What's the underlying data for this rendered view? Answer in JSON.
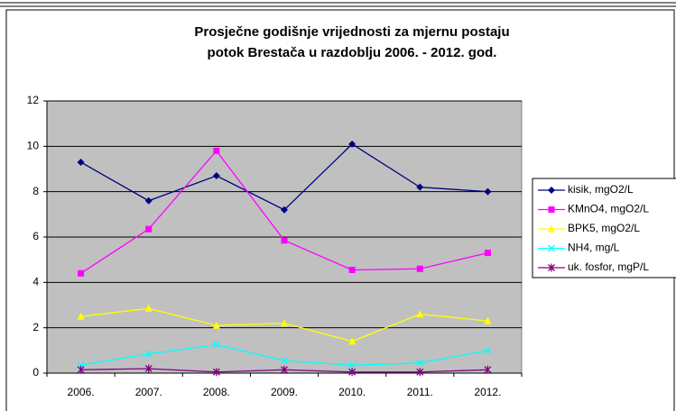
{
  "chart_data": {
    "type": "line",
    "title": [
      "Prosječne godišnje vrijednosti za mjernu postaju",
      "potok Brestača u razdoblju 2006. - 2012. god."
    ],
    "categories": [
      "2006.",
      "2007.",
      "2008.",
      "2009.",
      "2010.",
      "2011.",
      "2012."
    ],
    "series": [
      {
        "name": "kisik, mgO2/L",
        "color": "#000080",
        "marker": "diamond",
        "values": [
          9.3,
          7.6,
          8.7,
          7.2,
          10.1,
          8.2,
          8.0
        ]
      },
      {
        "name": "KMnO4, mgO2/L",
        "color": "#ff00ff",
        "marker": "square",
        "values": [
          4.4,
          6.35,
          9.8,
          5.85,
          4.55,
          4.6,
          5.3
        ]
      },
      {
        "name": "BPK5, mgO2/L",
        "color": "#ffff00",
        "marker": "triangle",
        "values": [
          2.5,
          2.85,
          2.1,
          2.2,
          1.4,
          2.6,
          2.3
        ]
      },
      {
        "name": "NH4, mg/L",
        "color": "#00ffff",
        "marker": "x",
        "values": [
          0.35,
          0.85,
          1.25,
          0.55,
          0.35,
          0.45,
          1.0
        ]
      },
      {
        "name": "uk. fosfor, mgP/L",
        "color": "#800080",
        "marker": "star",
        "values": [
          0.15,
          0.2,
          0.05,
          0.15,
          0.05,
          0.05,
          0.15
        ]
      }
    ],
    "ylim": [
      0,
      12
    ],
    "yticks": [
      0,
      2,
      4,
      6,
      8,
      10,
      12
    ],
    "grid": true,
    "legend": "right"
  }
}
